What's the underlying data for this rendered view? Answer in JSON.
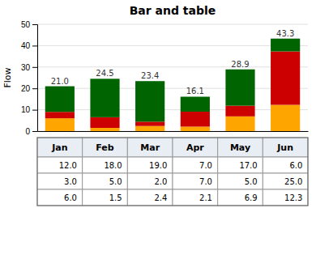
{
  "chart_data": {
    "type": "bar",
    "stacked": true,
    "title": "Bar and table",
    "ylabel": "Flow",
    "categories": [
      "Jan",
      "Feb",
      "Mar",
      "Apr",
      "May",
      "Jun"
    ],
    "series": [
      {
        "color": "#006400",
        "values": [
          12.0,
          18.0,
          19.0,
          7.0,
          17.0,
          6.0
        ],
        "value_labels": [
          "12.0",
          "18.0",
          "19.0",
          "7.0",
          "17.0",
          "6.0"
        ]
      },
      {
        "color": "#CC0000",
        "values": [
          3.0,
          5.0,
          2.0,
          7.0,
          5.0,
          25.0
        ],
        "value_labels": [
          "3.0",
          "5.0",
          "2.0",
          "7.0",
          "5.0",
          "25.0"
        ]
      },
      {
        "color": "#FFA500",
        "values": [
          6.0,
          1.5,
          2.4,
          2.1,
          6.9,
          12.3
        ],
        "value_labels": [
          "6.0",
          "1.5",
          "2.4",
          "2.1",
          "6.9",
          "12.3"
        ]
      }
    ],
    "totals": [
      21.0,
      24.5,
      23.4,
      16.1,
      28.9,
      43.3
    ],
    "total_labels": [
      "21.0",
      "24.5",
      "23.4",
      "16.1",
      "28.9",
      "43.3"
    ],
    "ylim": [
      0,
      50
    ],
    "yticks": [
      0,
      10,
      20,
      30,
      40,
      50
    ],
    "grid": true
  }
}
